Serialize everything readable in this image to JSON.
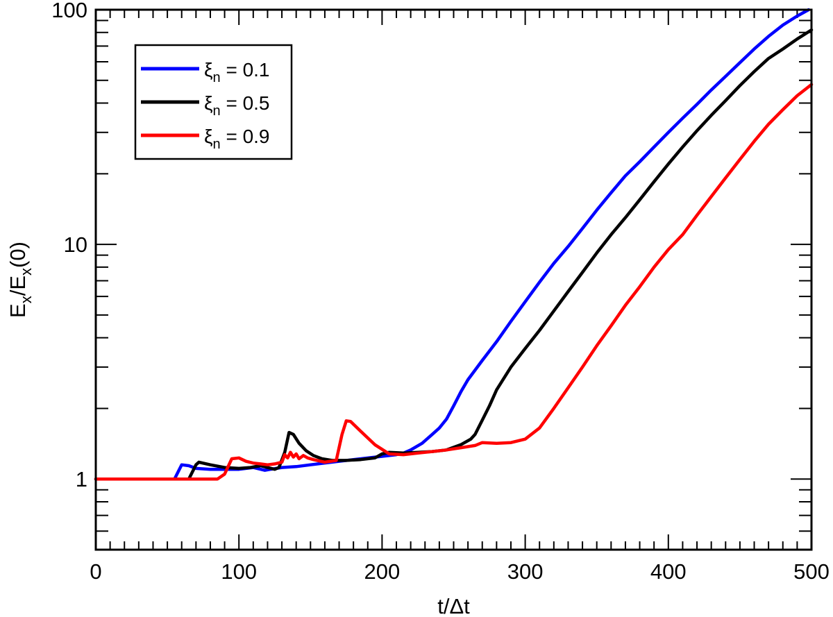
{
  "chart_data": {
    "type": "line",
    "title": "",
    "xlabel": "t/Δt",
    "ylabel_parts": {
      "main": "E",
      "sub": "x",
      "slash": "/E",
      "sub2": "x",
      "tail": "(0)"
    },
    "xlim": [
      0,
      500
    ],
    "ylim": [
      0.5,
      100
    ],
    "yscale": "log",
    "x_ticks": [
      0,
      100,
      200,
      300,
      400,
      500
    ],
    "x_tick_labels": [
      "0",
      "100",
      "200",
      "300",
      "400",
      "500"
    ],
    "y_ticks": [
      1,
      10,
      100
    ],
    "y_tick_labels": [
      "1",
      "10",
      "100"
    ],
    "grid": false,
    "legend_position": "top-left",
    "series": [
      {
        "name": "ξn = 0.1",
        "legend": {
          "sym": "ξ",
          "sub": "n",
          "rest": " = 0.1"
        },
        "color": "#0000ff",
        "points": [
          [
            0,
            1.0
          ],
          [
            55,
            1.0
          ],
          [
            60,
            1.15
          ],
          [
            65,
            1.14
          ],
          [
            70,
            1.11
          ],
          [
            80,
            1.1
          ],
          [
            90,
            1.1
          ],
          [
            100,
            1.1
          ],
          [
            110,
            1.12
          ],
          [
            118,
            1.09
          ],
          [
            122,
            1.1
          ],
          [
            130,
            1.12
          ],
          [
            140,
            1.13
          ],
          [
            150,
            1.15
          ],
          [
            160,
            1.17
          ],
          [
            170,
            1.19
          ],
          [
            180,
            1.21
          ],
          [
            190,
            1.23
          ],
          [
            200,
            1.25
          ],
          [
            210,
            1.27
          ],
          [
            215,
            1.29
          ],
          [
            220,
            1.33
          ],
          [
            228,
            1.42
          ],
          [
            235,
            1.55
          ],
          [
            240,
            1.65
          ],
          [
            245,
            1.8
          ],
          [
            250,
            2.05
          ],
          [
            255,
            2.35
          ],
          [
            260,
            2.65
          ],
          [
            270,
            3.2
          ],
          [
            280,
            3.85
          ],
          [
            290,
            4.7
          ],
          [
            300,
            5.7
          ],
          [
            310,
            6.9
          ],
          [
            320,
            8.3
          ],
          [
            330,
            9.8
          ],
          [
            340,
            11.7
          ],
          [
            350,
            14.0
          ],
          [
            360,
            16.6
          ],
          [
            370,
            19.6
          ],
          [
            380,
            22.5
          ],
          [
            390,
            26.0
          ],
          [
            400,
            30.0
          ],
          [
            410,
            34.5
          ],
          [
            420,
            39.5
          ],
          [
            430,
            45.5
          ],
          [
            440,
            52.0
          ],
          [
            450,
            59.5
          ],
          [
            460,
            68.0
          ],
          [
            470,
            77.0
          ],
          [
            480,
            86.0
          ],
          [
            490,
            94.0
          ],
          [
            498,
            100.0
          ]
        ]
      },
      {
        "name": "ξn = 0.5",
        "legend": {
          "sym": "ξ",
          "sub": "n",
          "rest": " = 0.5"
        },
        "color": "#000000",
        "points": [
          [
            0,
            1.0
          ],
          [
            65,
            1.0
          ],
          [
            70,
            1.15
          ],
          [
            72,
            1.18
          ],
          [
            80,
            1.15
          ],
          [
            90,
            1.12
          ],
          [
            100,
            1.11
          ],
          [
            108,
            1.12
          ],
          [
            115,
            1.14
          ],
          [
            120,
            1.12
          ],
          [
            125,
            1.1
          ],
          [
            128,
            1.12
          ],
          [
            132,
            1.3
          ],
          [
            135,
            1.58
          ],
          [
            138,
            1.55
          ],
          [
            142,
            1.42
          ],
          [
            147,
            1.32
          ],
          [
            152,
            1.26
          ],
          [
            158,
            1.22
          ],
          [
            165,
            1.2
          ],
          [
            175,
            1.2
          ],
          [
            185,
            1.21
          ],
          [
            195,
            1.23
          ],
          [
            200,
            1.28
          ],
          [
            205,
            1.3
          ],
          [
            215,
            1.29
          ],
          [
            225,
            1.3
          ],
          [
            235,
            1.31
          ],
          [
            245,
            1.33
          ],
          [
            255,
            1.4
          ],
          [
            262,
            1.48
          ],
          [
            265,
            1.55
          ],
          [
            270,
            1.78
          ],
          [
            275,
            2.05
          ],
          [
            280,
            2.4
          ],
          [
            290,
            3.0
          ],
          [
            300,
            3.6
          ],
          [
            310,
            4.3
          ],
          [
            320,
            5.2
          ],
          [
            330,
            6.3
          ],
          [
            340,
            7.6
          ],
          [
            350,
            9.2
          ],
          [
            360,
            11.0
          ],
          [
            370,
            13.0
          ],
          [
            380,
            15.5
          ],
          [
            390,
            18.5
          ],
          [
            400,
            22.0
          ],
          [
            410,
            26.0
          ],
          [
            420,
            30.5
          ],
          [
            430,
            35.5
          ],
          [
            440,
            41.0
          ],
          [
            450,
            47.5
          ],
          [
            460,
            54.5
          ],
          [
            470,
            62.0
          ],
          [
            480,
            68.0
          ],
          [
            490,
            75.0
          ],
          [
            500,
            82.0
          ]
        ]
      },
      {
        "name": "ξn = 0.9",
        "legend": {
          "sym": "ξ",
          "sub": "n",
          "rest": " = 0.9"
        },
        "color": "#ff0000",
        "points": [
          [
            0,
            1.0
          ],
          [
            85,
            1.0
          ],
          [
            90,
            1.05
          ],
          [
            95,
            1.22
          ],
          [
            100,
            1.23
          ],
          [
            105,
            1.19
          ],
          [
            110,
            1.17
          ],
          [
            115,
            1.16
          ],
          [
            120,
            1.15
          ],
          [
            125,
            1.16
          ],
          [
            130,
            1.18
          ],
          [
            132,
            1.27
          ],
          [
            134,
            1.23
          ],
          [
            136,
            1.3
          ],
          [
            138,
            1.24
          ],
          [
            140,
            1.28
          ],
          [
            142,
            1.22
          ],
          [
            145,
            1.26
          ],
          [
            148,
            1.23
          ],
          [
            152,
            1.21
          ],
          [
            160,
            1.18
          ],
          [
            168,
            1.2
          ],
          [
            172,
            1.55
          ],
          [
            175,
            1.77
          ],
          [
            178,
            1.76
          ],
          [
            185,
            1.6
          ],
          [
            195,
            1.4
          ],
          [
            205,
            1.28
          ],
          [
            215,
            1.27
          ],
          [
            225,
            1.29
          ],
          [
            235,
            1.31
          ],
          [
            245,
            1.33
          ],
          [
            255,
            1.36
          ],
          [
            265,
            1.39
          ],
          [
            270,
            1.43
          ],
          [
            280,
            1.42
          ],
          [
            290,
            1.43
          ],
          [
            300,
            1.48
          ],
          [
            310,
            1.65
          ],
          [
            320,
            2.0
          ],
          [
            330,
            2.45
          ],
          [
            340,
            3.0
          ],
          [
            350,
            3.7
          ],
          [
            360,
            4.5
          ],
          [
            370,
            5.5
          ],
          [
            380,
            6.6
          ],
          [
            390,
            8.0
          ],
          [
            400,
            9.5
          ],
          [
            410,
            11.0
          ],
          [
            420,
            13.3
          ],
          [
            430,
            16.0
          ],
          [
            440,
            19.2
          ],
          [
            450,
            23.0
          ],
          [
            460,
            27.5
          ],
          [
            470,
            32.5
          ],
          [
            480,
            37.5
          ],
          [
            490,
            43.0
          ],
          [
            500,
            48.0
          ]
        ]
      }
    ]
  }
}
